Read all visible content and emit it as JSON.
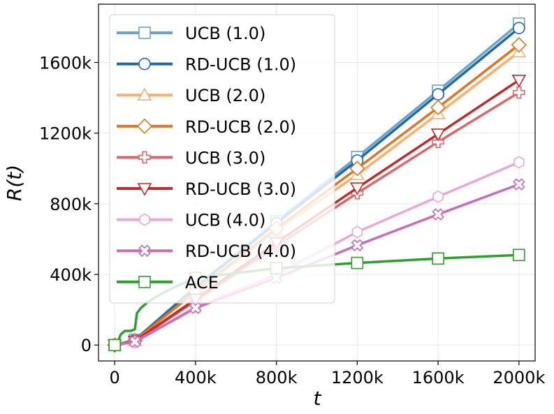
{
  "chart_data": {
    "type": "line",
    "title": "",
    "xlabel": "t",
    "ylabel": "R(t)",
    "xlim": [
      -80000,
      2080000
    ],
    "ylim": [
      -90000,
      1930000
    ],
    "grid": true,
    "legend_position": "top-left",
    "x_ticks": [
      0,
      400000,
      800000,
      1200000,
      1600000,
      2000000
    ],
    "x_tick_labels": [
      "0",
      "400k",
      "800k",
      "1200k",
      "1600k",
      "2000k"
    ],
    "y_ticks": [
      0,
      400000,
      800000,
      1200000,
      1600000
    ],
    "y_tick_labels": [
      "0",
      "400k",
      "800k",
      "1200k",
      "1600k"
    ],
    "series": [
      {
        "name": "UCB (1.0)",
        "color": "#6aa3cf",
        "marker": "square",
        "x": [
          0,
          100000,
          400000,
          800000,
          1200000,
          1600000,
          2000000
        ],
        "y": [
          0,
          30000,
          330000,
          700000,
          1065000,
          1440000,
          1820000
        ]
      },
      {
        "name": "RD-UCB (1.0)",
        "color": "#1f6aa5",
        "marker": "circle",
        "x": [
          0,
          100000,
          400000,
          800000,
          1200000,
          1600000,
          2000000
        ],
        "y": [
          0,
          28000,
          325000,
          690000,
          1045000,
          1420000,
          1795000
        ]
      },
      {
        "name": "UCB (2.0)",
        "color": "#fdae6b",
        "marker": "triangle-up",
        "x": [
          0,
          100000,
          400000,
          800000,
          1200000,
          1600000,
          2000000
        ],
        "y": [
          0,
          25000,
          300000,
          650000,
          965000,
          1310000,
          1660000
        ]
      },
      {
        "name": "RD-UCB (2.0)",
        "color": "#e6741c",
        "marker": "diamond",
        "x": [
          0,
          100000,
          400000,
          800000,
          1200000,
          1600000,
          2000000
        ],
        "y": [
          0,
          25000,
          305000,
          660000,
          1000000,
          1345000,
          1700000
        ]
      },
      {
        "name": "UCB (3.0)",
        "color": "#e06666",
        "marker": "plus",
        "x": [
          0,
          100000,
          400000,
          800000,
          1200000,
          1600000,
          2000000
        ],
        "y": [
          0,
          22000,
          250000,
          560000,
          860000,
          1150000,
          1430000
        ]
      },
      {
        "name": "RD-UCB (3.0)",
        "color": "#c62828",
        "marker": "triangle-down",
        "x": [
          0,
          100000,
          400000,
          800000,
          1200000,
          1600000,
          2000000
        ],
        "y": [
          0,
          22000,
          260000,
          580000,
          890000,
          1195000,
          1500000
        ]
      },
      {
        "name": "UCB (4.0)",
        "color": "#eba7d8",
        "marker": "hexagon",
        "x": [
          0,
          100000,
          400000,
          800000,
          1200000,
          1600000,
          2000000
        ],
        "y": [
          0,
          18000,
          215000,
          400000,
          640000,
          840000,
          1035000
        ]
      },
      {
        "name": "RD-UCB (4.0)",
        "color": "#cc6bb7",
        "marker": "x",
        "x": [
          0,
          100000,
          400000,
          800000,
          1200000,
          1600000,
          2000000
        ],
        "y": [
          0,
          18000,
          210000,
          380000,
          565000,
          740000,
          910000
        ]
      },
      {
        "name": "ACE",
        "color": "#2ca02c",
        "marker": "square",
        "x": [
          0,
          20000,
          30000,
          50000,
          70000,
          80000,
          100000,
          110000,
          130000,
          160000,
          200000,
          300000,
          400000,
          800000,
          1200000,
          1600000,
          2000000
        ],
        "y": [
          0,
          30000,
          60000,
          80000,
          80000,
          80000,
          90000,
          180000,
          210000,
          240000,
          270000,
          330000,
          380000,
          435000,
          465000,
          490000,
          510000
        ],
        "marker_x": [
          0,
          400000,
          800000,
          1200000,
          1600000,
          2000000
        ],
        "marker_y": [
          0,
          380000,
          435000,
          465000,
          490000,
          510000
        ]
      }
    ]
  }
}
